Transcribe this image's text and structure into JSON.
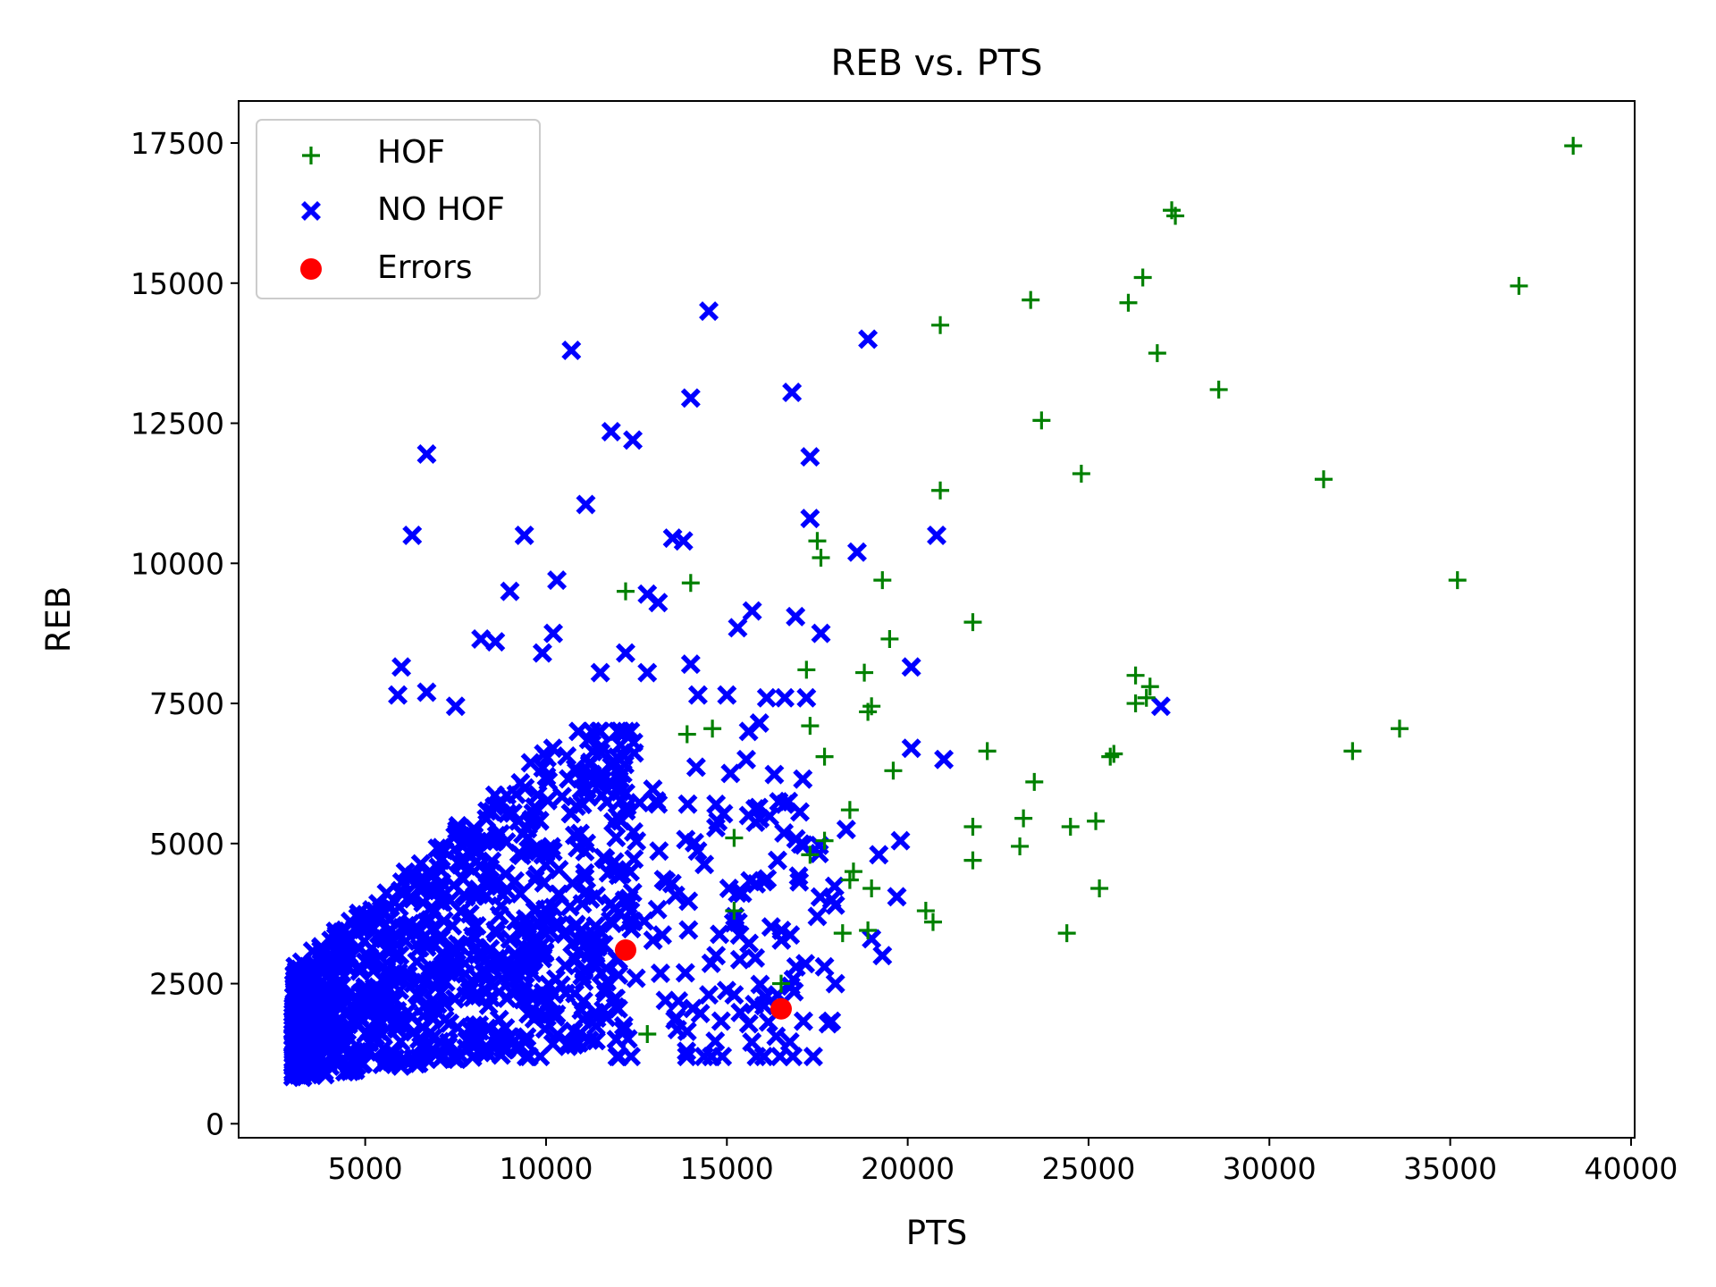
{
  "chart_data": {
    "type": "scatter",
    "title": "REB vs. PTS",
    "xlabel": "PTS",
    "ylabel": "REB",
    "xlim": [
      1500,
      40100
    ],
    "ylim": [
      -250,
      18250
    ],
    "xticks": [
      5000,
      10000,
      15000,
      20000,
      25000,
      30000,
      35000,
      40000
    ],
    "yticks": [
      0,
      2500,
      5000,
      7500,
      10000,
      12500,
      15000,
      17500
    ],
    "grid": false,
    "legend_position": "top-left",
    "series": [
      {
        "name": "HOF",
        "marker": "plus",
        "color": "#008000",
        "x": [
          38400,
          36900,
          27300,
          27400,
          26500,
          26100,
          23400,
          20900,
          26900,
          28600,
          23700,
          31500,
          24800,
          20900,
          35200,
          17500,
          17600,
          19300,
          14000,
          12200,
          21800,
          19500,
          17200,
          18800,
          26300,
          26700,
          26600,
          26300,
          19000,
          18900,
          33600,
          17300,
          25700,
          25600,
          22200,
          32300,
          17700,
          19600,
          23500,
          18400,
          21800,
          23200,
          25200,
          24500,
          15200,
          17700,
          17300,
          23100,
          21800,
          18500,
          18400,
          19000,
          25300,
          24400,
          20500,
          20700,
          18200,
          18900,
          15200,
          16500,
          12800,
          14600,
          13900
        ],
        "y": [
          17450,
          14950,
          16300,
          16200,
          15100,
          14650,
          14700,
          14250,
          13750,
          13100,
          12550,
          11500,
          11600,
          11300,
          9700,
          10400,
          10100,
          9700,
          9650,
          9500,
          8950,
          8650,
          8100,
          8050,
          8000,
          7800,
          7600,
          7500,
          7450,
          7350,
          7050,
          7100,
          6600,
          6550,
          6650,
          6650,
          6550,
          6300,
          6100,
          5600,
          5300,
          5450,
          5400,
          5300,
          5100,
          5050,
          4800,
          4950,
          4700,
          4500,
          4350,
          4200,
          4200,
          3400,
          3800,
          3600,
          3400,
          3450,
          3800,
          2500,
          1600,
          7050,
          6950
        ]
      },
      {
        "name": "NO HOF",
        "marker": "x",
        "color": "#0000ff",
        "x": [
          14500,
          10700,
          18900,
          14000,
          16800,
          11800,
          12400,
          6700,
          17300,
          11100,
          17300,
          6300,
          9400,
          13500,
          13800,
          18600,
          20800,
          10300,
          12800,
          9000,
          13100,
          16900,
          15700,
          15300,
          17600,
          8200,
          8600,
          10200,
          9900,
          12200,
          6000,
          12800,
          14000,
          11500,
          5900,
          6700,
          14200,
          15000,
          16600,
          16100,
          17200,
          20100,
          27000,
          7500,
          20100,
          21000,
          15600,
          15900,
          17100,
          15100,
          16600,
          16700,
          18300,
          19800,
          19200,
          14700,
          15600,
          16400,
          17900,
          17500,
          19700,
          19300,
          18000,
          19000,
          17700,
          18000,
          16400,
          14500,
          15200,
          13300,
          12000,
          14700
        ],
        "y": [
          14500,
          13800,
          14000,
          12950,
          13050,
          12350,
          12200,
          11950,
          11900,
          11050,
          10800,
          10500,
          10500,
          10450,
          10400,
          10200,
          10500,
          9700,
          9450,
          9500,
          9300,
          9050,
          9150,
          8850,
          8750,
          8650,
          8600,
          8750,
          8400,
          8400,
          8150,
          8050,
          8200,
          8050,
          7650,
          7700,
          7650,
          7650,
          7600,
          7600,
          7600,
          8150,
          7450,
          7450,
          6700,
          6500,
          7000,
          7150,
          6150,
          6250,
          5700,
          5750,
          5250,
          5050,
          4800,
          5700,
          5500,
          4700,
          4000,
          3700,
          4050,
          3000,
          3900,
          3300,
          2800,
          2500,
          2300,
          2300,
          2300,
          2200,
          2050,
          3000
        ]
      },
      {
        "name": "Errors",
        "marker": "circle",
        "color": "#ff0000",
        "x": [
          12200,
          16500
        ],
        "y": [
          3100,
          2050
        ]
      }
    ],
    "no_hof_dense_region": {
      "x": [
        3000,
        12500
      ],
      "y": [
        500,
        7000
      ]
    }
  }
}
